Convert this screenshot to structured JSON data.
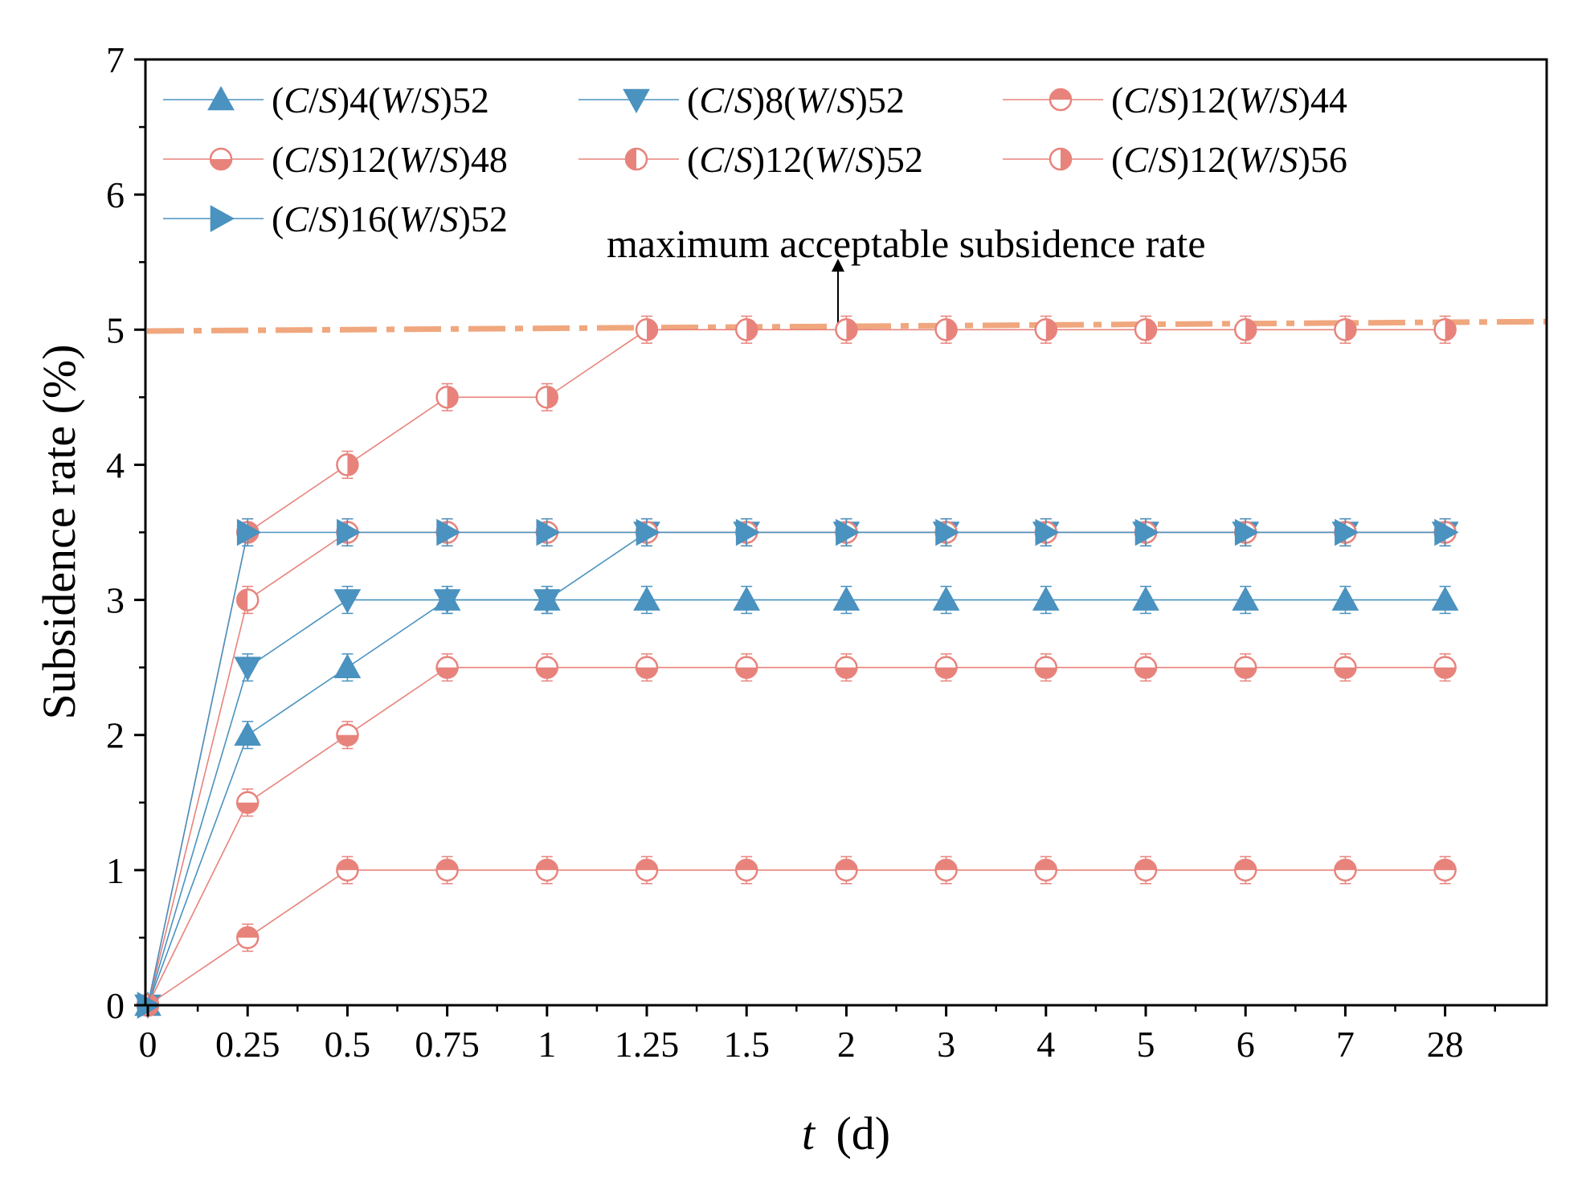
{
  "chart_data": {
    "type": "line",
    "xlabel": {
      "italic": "t",
      "unit": "(d)"
    },
    "ylabel": "Subsidence rate (%)",
    "ylim": [
      0,
      7
    ],
    "yticks": [
      "0",
      "1",
      "2",
      "3",
      "4",
      "5",
      "6",
      "7"
    ],
    "categories": [
      "0",
      "0.25",
      "0.5",
      "0.75",
      "1",
      "1.25",
      "1.5",
      "2",
      "3",
      "4",
      "5",
      "6",
      "7",
      "28"
    ],
    "reference_line": {
      "label": "maximum acceptable subsidence rate",
      "y_start": 4.99,
      "y_end": 5.06,
      "color": "#F0A77E"
    },
    "series": [
      {
        "name": "(C/S)4(W/S)52",
        "cs": "4",
        "ws": "52",
        "color": "#4A92BF",
        "marker": "triangle-up",
        "fill": "full",
        "values": [
          0,
          2,
          2.5,
          3,
          3,
          3,
          3,
          3,
          3,
          3,
          3,
          3,
          3,
          3
        ]
      },
      {
        "name": "(C/S)8(W/S)52",
        "cs": "8",
        "ws": "52",
        "color": "#4A92BF",
        "marker": "triangle-down",
        "fill": "full",
        "values": [
          0,
          2.5,
          3,
          3,
          3,
          3.5,
          3.5,
          3.5,
          3.5,
          3.5,
          3.5,
          3.5,
          3.5,
          3.5
        ]
      },
      {
        "name": "(C/S)12(W/S)44",
        "cs": "12",
        "ws": "44",
        "color": "#E8837C",
        "marker": "circle",
        "fill": "top",
        "values": [
          0,
          0.5,
          1,
          1,
          1,
          1,
          1,
          1,
          1,
          1,
          1,
          1,
          1,
          1
        ]
      },
      {
        "name": "(C/S)12(W/S)48",
        "cs": "12",
        "ws": "48",
        "color": "#E8837C",
        "marker": "circle",
        "fill": "bottom",
        "values": [
          0,
          1.5,
          2,
          2.5,
          2.5,
          2.5,
          2.5,
          2.5,
          2.5,
          2.5,
          2.5,
          2.5,
          2.5,
          2.5
        ]
      },
      {
        "name": "(C/S)12(W/S)52",
        "cs": "12",
        "ws": "52",
        "color": "#E8837C",
        "marker": "circle",
        "fill": "left",
        "values": [
          0,
          3,
          3.5,
          3.5,
          3.5,
          3.5,
          3.5,
          3.5,
          3.5,
          3.5,
          3.5,
          3.5,
          3.5,
          3.5
        ]
      },
      {
        "name": "(C/S)12(W/S)56",
        "cs": "12",
        "ws": "56",
        "color": "#E8837C",
        "marker": "circle",
        "fill": "right",
        "values": [
          0,
          3.5,
          4,
          4.5,
          4.5,
          5,
          5,
          5,
          5,
          5,
          5,
          5,
          5,
          5
        ]
      },
      {
        "name": "(C/S)16(W/S)52",
        "cs": "16",
        "ws": "52",
        "color": "#4A92BF",
        "marker": "triangle-right",
        "fill": "full",
        "values": [
          0,
          3.5,
          3.5,
          3.5,
          3.5,
          3.5,
          3.5,
          3.5,
          3.5,
          3.5,
          3.5,
          3.5,
          3.5,
          3.5
        ]
      }
    ],
    "error_bar": 0.1,
    "legend_position": "top-left"
  }
}
